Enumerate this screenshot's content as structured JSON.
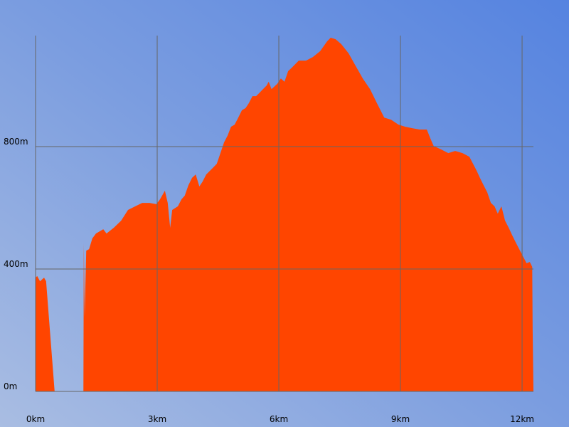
{
  "chart_data": {
    "type": "area",
    "color": "#ff4500",
    "grid": true,
    "x": [
      0.0,
      0.04,
      0.11,
      0.21,
      0.26,
      0.47,
      1.18,
      1.19,
      1.21,
      1.25,
      1.32,
      1.4,
      1.49,
      1.67,
      1.75,
      1.93,
      2.11,
      2.28,
      2.46,
      2.63,
      2.81,
      2.98,
      3.07,
      3.19,
      3.26,
      3.32,
      3.37,
      3.51,
      3.6,
      3.68,
      3.77,
      3.86,
      3.95,
      4.04,
      4.12,
      4.21,
      4.3,
      4.39,
      4.47,
      4.56,
      4.65,
      4.74,
      4.82,
      4.91,
      5.0,
      5.09,
      5.18,
      5.26,
      5.35,
      5.44,
      5.53,
      5.61,
      5.7,
      5.75,
      5.82,
      5.96,
      6.05,
      6.14,
      6.23,
      6.32,
      6.49,
      6.67,
      6.84,
      7.02,
      7.19,
      7.28,
      7.4,
      7.54,
      7.72,
      7.89,
      8.07,
      8.25,
      8.42,
      8.6,
      8.77,
      8.95,
      9.12,
      9.3,
      9.47,
      9.65,
      9.74,
      9.82,
      10.0,
      10.18,
      10.35,
      10.53,
      10.7,
      10.79,
      10.88,
      10.96,
      11.05,
      11.14,
      11.23,
      11.32,
      11.4,
      11.49,
      11.58,
      11.67,
      11.75,
      11.84,
      11.93,
      12.02,
      12.11,
      12.19,
      12.25,
      12.26,
      12.28
    ],
    "values": [
      372,
      377,
      360,
      372,
      360,
      0,
      0,
      484,
      244,
      460,
      465,
      500,
      516,
      530,
      516,
      535,
      558,
      593,
      605,
      616,
      616,
      612,
      628,
      656,
      616,
      535,
      593,
      605,
      628,
      640,
      674,
      698,
      709,
      670,
      686,
      709,
      721,
      733,
      744,
      779,
      814,
      837,
      865,
      872,
      895,
      919,
      926,
      942,
      965,
      965,
      977,
      988,
      1000,
      1012,
      988,
      1005,
      1023,
      1012,
      1047,
      1058,
      1081,
      1081,
      1093,
      1112,
      1144,
      1156,
      1151,
      1135,
      1105,
      1065,
      1023,
      988,
      942,
      895,
      888,
      872,
      865,
      860,
      856,
      856,
      826,
      802,
      791,
      779,
      786,
      779,
      767,
      744,
      721,
      698,
      674,
      651,
      616,
      605,
      581,
      605,
      558,
      535,
      512,
      488,
      465,
      442,
      419,
      423,
      407,
      209,
      0
    ],
    "xlim": [
      0,
      12.28
    ],
    "ylim": [
      0,
      1163
    ],
    "xticks": [
      {
        "value": 0,
        "label": "0km"
      },
      {
        "value": 3,
        "label": "3km"
      },
      {
        "value": 6,
        "label": "6km"
      },
      {
        "value": 9,
        "label": "9km"
      },
      {
        "value": 12,
        "label": "12km"
      }
    ],
    "yticks": [
      {
        "value": 0,
        "label": "0m"
      },
      {
        "value": 400,
        "label": "400m"
      },
      {
        "value": 800,
        "label": "800m"
      }
    ]
  }
}
